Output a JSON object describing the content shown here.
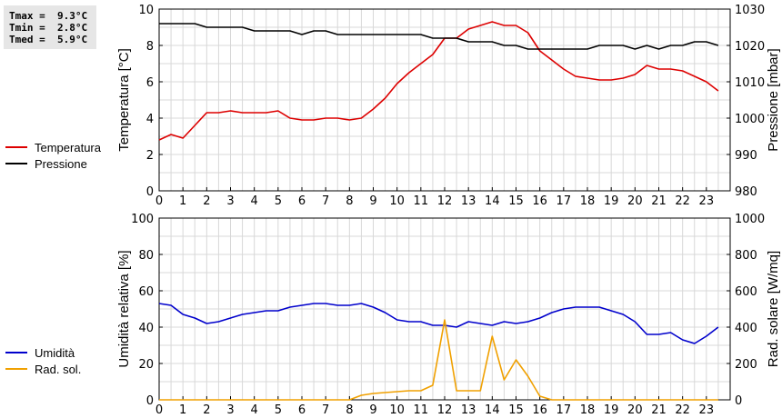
{
  "stats": {
    "tmax": "Tmax =  9.3°C",
    "tmin": "Tmin =  2.8°C",
    "tmed": "Tmed =  5.9°C"
  },
  "colors": {
    "temperature": "#dd0000",
    "pressure": "#000000",
    "humidity": "#0000cc",
    "solar": "#f0a000",
    "grid": "#d8d8d8"
  },
  "chart_data": [
    {
      "type": "line",
      "title": "",
      "xlabel": "",
      "x_ticks": [
        0,
        1,
        2,
        3,
        4,
        5,
        6,
        7,
        8,
        9,
        10,
        11,
        12,
        13,
        14,
        15,
        16,
        17,
        18,
        19,
        20,
        21,
        22,
        23
      ],
      "xlim": [
        0,
        24
      ],
      "ylabel_left": "Temperatura [°C]",
      "ylim_left": [
        0,
        10
      ],
      "yticks_left": [
        0,
        2,
        4,
        6,
        8,
        10
      ],
      "ylabel_right": "Pressione [mbar]",
      "ylim_right": [
        980,
        1030
      ],
      "yticks_right": [
        980,
        990,
        1000,
        1010,
        1020,
        1030
      ],
      "grid": true,
      "legend_position": "left",
      "series": [
        {
          "name": "Temperatura",
          "axis": "left",
          "color": "#dd0000",
          "points": [
            [
              0,
              2.8
            ],
            [
              0.5,
              3.1
            ],
            [
              1,
              2.9
            ],
            [
              1.5,
              3.6
            ],
            [
              2,
              4.3
            ],
            [
              2.5,
              4.3
            ],
            [
              3,
              4.4
            ],
            [
              3.5,
              4.3
            ],
            [
              4,
              4.3
            ],
            [
              4.5,
              4.3
            ],
            [
              5,
              4.4
            ],
            [
              5.5,
              4.0
            ],
            [
              6,
              3.9
            ],
            [
              6.5,
              3.9
            ],
            [
              7,
              4.0
            ],
            [
              7.5,
              4.0
            ],
            [
              8,
              3.9
            ],
            [
              8.5,
              4.0
            ],
            [
              9,
              4.5
            ],
            [
              9.5,
              5.1
            ],
            [
              10,
              5.9
            ],
            [
              10.5,
              6.5
            ],
            [
              11,
              7.0
            ],
            [
              11.5,
              7.5
            ],
            [
              12,
              8.4
            ],
            [
              12.5,
              8.4
            ],
            [
              13,
              8.9
            ],
            [
              13.5,
              9.1
            ],
            [
              14,
              9.3
            ],
            [
              14.5,
              9.1
            ],
            [
              15,
              9.1
            ],
            [
              15.5,
              8.7
            ],
            [
              16,
              7.7
            ],
            [
              16.5,
              7.2
            ],
            [
              17,
              6.7
            ],
            [
              17.5,
              6.3
            ],
            [
              18,
              6.2
            ],
            [
              18.5,
              6.1
            ],
            [
              19,
              6.1
            ],
            [
              19.5,
              6.2
            ],
            [
              20,
              6.4
            ],
            [
              20.5,
              6.9
            ],
            [
              21,
              6.7
            ],
            [
              21.5,
              6.7
            ],
            [
              22,
              6.6
            ],
            [
              22.5,
              6.3
            ],
            [
              23,
              6.0
            ],
            [
              23.5,
              5.5
            ]
          ]
        },
        {
          "name": "Pressione",
          "axis": "right",
          "color": "#000000",
          "points": [
            [
              0,
              1026
            ],
            [
              1,
              1026
            ],
            [
              1.5,
              1026
            ],
            [
              2,
              1025
            ],
            [
              3,
              1025
            ],
            [
              3.5,
              1025
            ],
            [
              4,
              1024
            ],
            [
              5,
              1024
            ],
            [
              5.5,
              1024
            ],
            [
              6,
              1023
            ],
            [
              6.5,
              1024
            ],
            [
              7,
              1024
            ],
            [
              7.5,
              1023
            ],
            [
              8,
              1023
            ],
            [
              9,
              1023
            ],
            [
              10,
              1023
            ],
            [
              11,
              1023
            ],
            [
              11.5,
              1022
            ],
            [
              12.5,
              1022
            ],
            [
              13,
              1021
            ],
            [
              14,
              1021
            ],
            [
              14.5,
              1020
            ],
            [
              15,
              1020
            ],
            [
              15.5,
              1019
            ],
            [
              16,
              1019
            ],
            [
              17,
              1019
            ],
            [
              18,
              1019
            ],
            [
              18.5,
              1020
            ],
            [
              19,
              1020
            ],
            [
              19.5,
              1020
            ],
            [
              20,
              1019
            ],
            [
              20.5,
              1020
            ],
            [
              21,
              1019
            ],
            [
              21.5,
              1020
            ],
            [
              22,
              1020
            ],
            [
              22.5,
              1021
            ],
            [
              23,
              1021
            ],
            [
              23.5,
              1020
            ]
          ]
        }
      ]
    },
    {
      "type": "line",
      "title": "",
      "xlabel": "",
      "x_ticks": [
        0,
        1,
        2,
        3,
        4,
        5,
        6,
        7,
        8,
        9,
        10,
        11,
        12,
        13,
        14,
        15,
        16,
        17,
        18,
        19,
        20,
        21,
        22,
        23
      ],
      "xlim": [
        0,
        24
      ],
      "ylabel_left": "Umidità relativa [%]",
      "ylim_left": [
        0,
        100
      ],
      "yticks_left": [
        0,
        20,
        40,
        60,
        80,
        100
      ],
      "ylabel_right": "Rad. solare [W/mq]",
      "ylim_right": [
        0,
        1000
      ],
      "yticks_right": [
        0,
        200,
        400,
        600,
        800,
        1000
      ],
      "grid": true,
      "legend_position": "left",
      "series": [
        {
          "name": "Umidità",
          "axis": "left",
          "color": "#0000cc",
          "points": [
            [
              0,
              53
            ],
            [
              0.5,
              52
            ],
            [
              1,
              47
            ],
            [
              1.5,
              45
            ],
            [
              2,
              42
            ],
            [
              2.5,
              43
            ],
            [
              3,
              45
            ],
            [
              3.5,
              47
            ],
            [
              4,
              48
            ],
            [
              4.5,
              49
            ],
            [
              5,
              49
            ],
            [
              5.5,
              51
            ],
            [
              6,
              52
            ],
            [
              6.5,
              53
            ],
            [
              7,
              53
            ],
            [
              7.5,
              52
            ],
            [
              8,
              52
            ],
            [
              8.5,
              53
            ],
            [
              9,
              51
            ],
            [
              9.5,
              48
            ],
            [
              10,
              44
            ],
            [
              10.5,
              43
            ],
            [
              11,
              43
            ],
            [
              11.5,
              41
            ],
            [
              12,
              41
            ],
            [
              12.5,
              40
            ],
            [
              13,
              43
            ],
            [
              13.5,
              42
            ],
            [
              14,
              41
            ],
            [
              14.5,
              43
            ],
            [
              15,
              42
            ],
            [
              15.5,
              43
            ],
            [
              16,
              45
            ],
            [
              16.5,
              48
            ],
            [
              17,
              50
            ],
            [
              17.5,
              51
            ],
            [
              18,
              51
            ],
            [
              18.5,
              51
            ],
            [
              19,
              49
            ],
            [
              19.5,
              47
            ],
            [
              20,
              43
            ],
            [
              20.5,
              36
            ],
            [
              21,
              36
            ],
            [
              21.5,
              37
            ],
            [
              22,
              33
            ],
            [
              22.5,
              31
            ],
            [
              23,
              35
            ],
            [
              23.5,
              40
            ]
          ]
        },
        {
          "name": "Rad. sol.",
          "axis": "right",
          "color": "#f0a000",
          "points": [
            [
              0,
              0
            ],
            [
              8,
              0
            ],
            [
              8.5,
              25
            ],
            [
              9,
              35
            ],
            [
              9.5,
              40
            ],
            [
              10,
              45
            ],
            [
              10.5,
              50
            ],
            [
              11,
              50
            ],
            [
              11.5,
              80
            ],
            [
              12,
              440
            ],
            [
              12.5,
              50
            ],
            [
              13,
              50
            ],
            [
              13.5,
              50
            ],
            [
              14,
              350
            ],
            [
              14.5,
              110
            ],
            [
              15,
              220
            ],
            [
              15.5,
              130
            ],
            [
              16,
              20
            ],
            [
              16.5,
              0
            ],
            [
              17,
              0
            ],
            [
              23.5,
              0
            ]
          ]
        }
      ]
    }
  ]
}
